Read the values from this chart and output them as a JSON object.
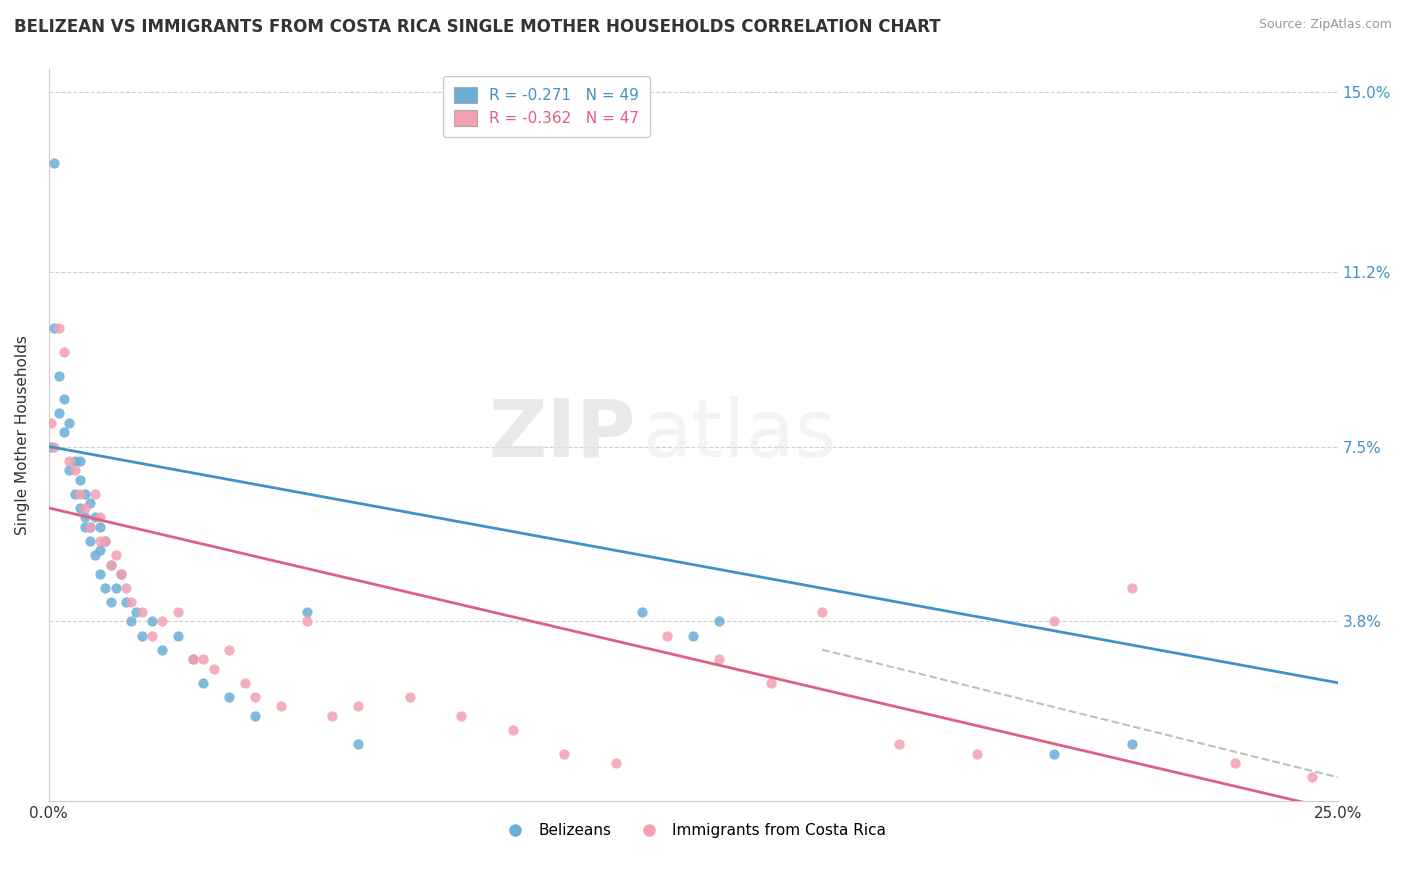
{
  "title": "BELIZEAN VS IMMIGRANTS FROM COSTA RICA SINGLE MOTHER HOUSEHOLDS CORRELATION CHART",
  "source": "Source: ZipAtlas.com",
  "ylabel": "Single Mother Households",
  "watermark_zip": "ZIP",
  "watermark_atlas": "atlas",
  "xlim": [
    0.0,
    0.25
  ],
  "ylim": [
    0.0,
    0.155
  ],
  "xtick_labels": [
    "0.0%",
    "25.0%"
  ],
  "ytick_labels": [
    "3.8%",
    "7.5%",
    "11.2%",
    "15.0%"
  ],
  "ytick_vals": [
    0.038,
    0.075,
    0.112,
    0.15
  ],
  "legend_blue_r": "-0.271",
  "legend_blue_n": "49",
  "legend_pink_r": "-0.362",
  "legend_pink_n": "47",
  "color_blue": "#6baed6",
  "color_pink": "#f4a0b0",
  "line_blue": "#4292c6",
  "line_pink": "#e06080",
  "line_dashed": "#c0c0c0",
  "blue_x": [
    0.0005,
    0.001,
    0.001,
    0.002,
    0.002,
    0.003,
    0.003,
    0.004,
    0.004,
    0.005,
    0.005,
    0.006,
    0.006,
    0.006,
    0.007,
    0.007,
    0.007,
    0.008,
    0.008,
    0.008,
    0.009,
    0.009,
    0.01,
    0.01,
    0.01,
    0.011,
    0.011,
    0.012,
    0.012,
    0.013,
    0.014,
    0.015,
    0.016,
    0.017,
    0.018,
    0.02,
    0.022,
    0.025,
    0.028,
    0.03,
    0.035,
    0.04,
    0.05,
    0.06,
    0.115,
    0.125,
    0.13,
    0.195,
    0.21
  ],
  "blue_y": [
    0.075,
    0.135,
    0.1,
    0.09,
    0.082,
    0.085,
    0.078,
    0.08,
    0.07,
    0.072,
    0.065,
    0.068,
    0.072,
    0.062,
    0.065,
    0.058,
    0.06,
    0.063,
    0.055,
    0.058,
    0.06,
    0.052,
    0.058,
    0.053,
    0.048,
    0.055,
    0.045,
    0.05,
    0.042,
    0.045,
    0.048,
    0.042,
    0.038,
    0.04,
    0.035,
    0.038,
    0.032,
    0.035,
    0.03,
    0.025,
    0.022,
    0.018,
    0.04,
    0.012,
    0.04,
    0.035,
    0.038,
    0.01,
    0.012
  ],
  "pink_x": [
    0.0005,
    0.001,
    0.002,
    0.003,
    0.004,
    0.005,
    0.006,
    0.007,
    0.008,
    0.009,
    0.01,
    0.01,
    0.011,
    0.012,
    0.013,
    0.014,
    0.015,
    0.016,
    0.018,
    0.02,
    0.022,
    0.025,
    0.028,
    0.03,
    0.032,
    0.035,
    0.038,
    0.04,
    0.045,
    0.05,
    0.055,
    0.06,
    0.07,
    0.08,
    0.09,
    0.1,
    0.11,
    0.12,
    0.13,
    0.14,
    0.15,
    0.165,
    0.18,
    0.195,
    0.21,
    0.23,
    0.245
  ],
  "pink_y": [
    0.08,
    0.075,
    0.1,
    0.095,
    0.072,
    0.07,
    0.065,
    0.062,
    0.058,
    0.065,
    0.06,
    0.055,
    0.055,
    0.05,
    0.052,
    0.048,
    0.045,
    0.042,
    0.04,
    0.035,
    0.038,
    0.04,
    0.03,
    0.03,
    0.028,
    0.032,
    0.025,
    0.022,
    0.02,
    0.038,
    0.018,
    0.02,
    0.022,
    0.018,
    0.015,
    0.01,
    0.008,
    0.035,
    0.03,
    0.025,
    0.04,
    0.012,
    0.01,
    0.038,
    0.045,
    0.008,
    0.005
  ],
  "blue_line_x": [
    0.0,
    0.25
  ],
  "blue_line_y": [
    0.075,
    0.025
  ],
  "pink_line_x": [
    0.0,
    0.25
  ],
  "pink_line_y": [
    0.062,
    -0.002
  ],
  "dashed_line_x": [
    0.15,
    0.25
  ],
  "dashed_line_y": [
    0.032,
    0.005
  ]
}
